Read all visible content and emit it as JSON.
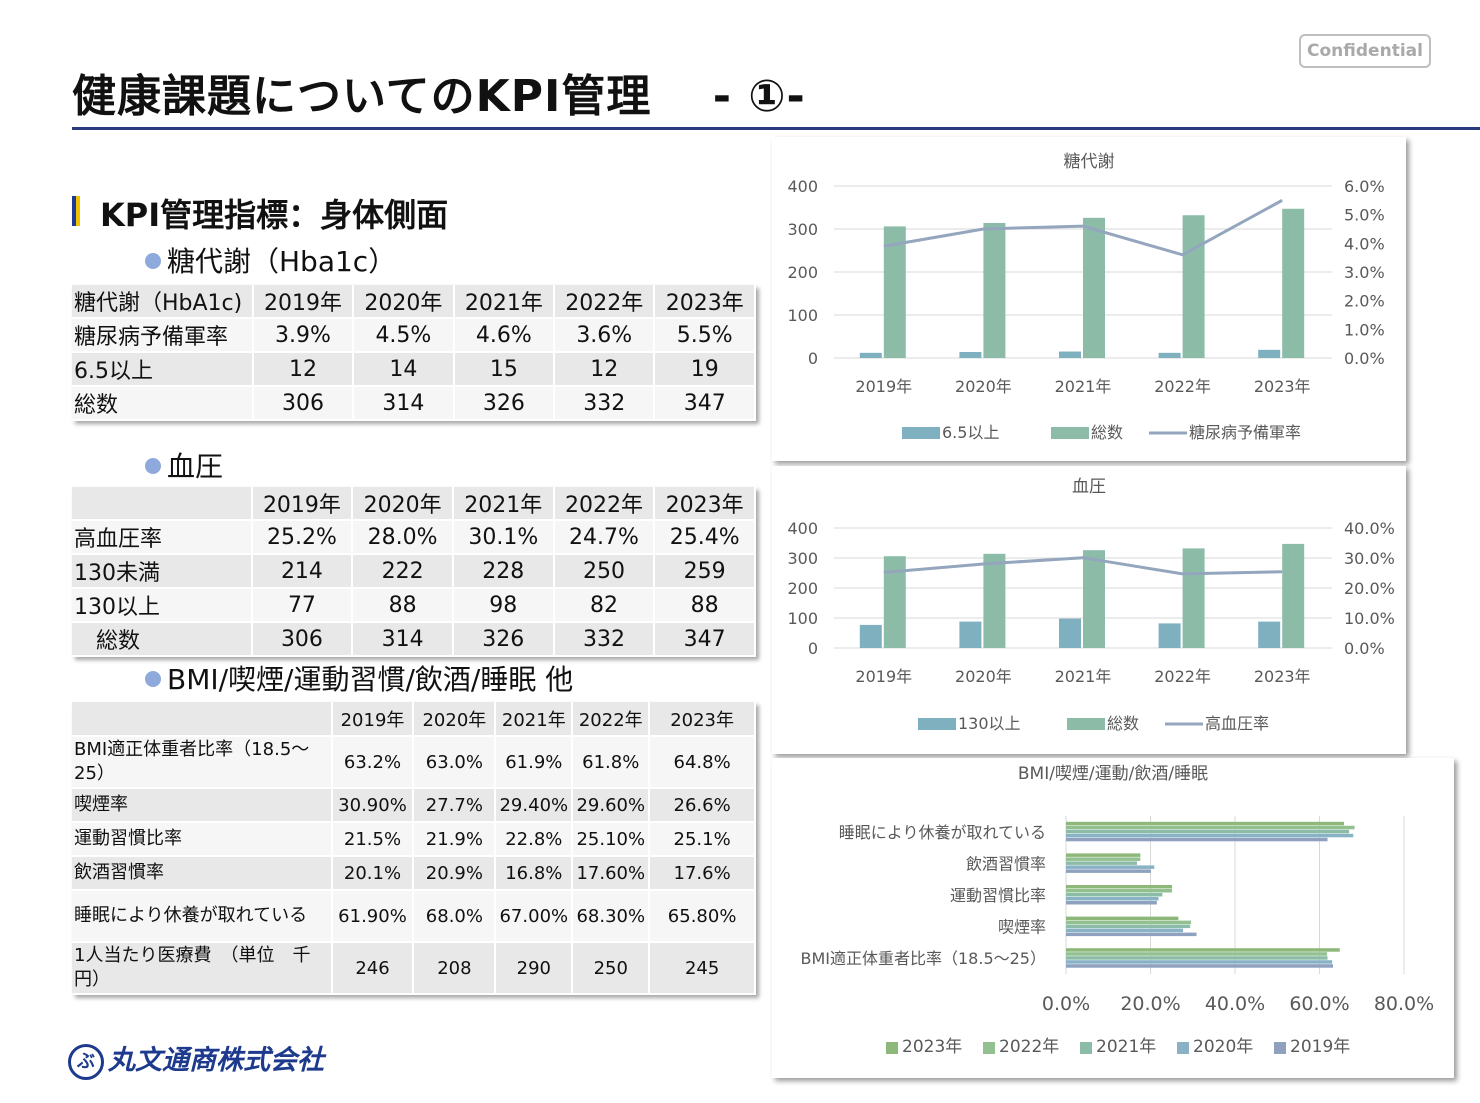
{
  "header": {
    "title": "健康課題についてのKPI管理　 - ①-",
    "confidential": "Confidential"
  },
  "section": {
    "title": "KPI管理指標：身体側面",
    "bullet1": "糖代謝（Hba1c）",
    "bullet2": "血圧",
    "bullet3": "BMI/喫煙/運動習慣/飲酒/睡眠 他"
  },
  "table1": {
    "headers": [
      "糖代謝（HbA1c)",
      "2019年",
      "2020年",
      "2021年",
      "2022年",
      "2023年"
    ],
    "rows": [
      [
        "糖尿病予備軍率",
        "3.9%",
        "4.5%",
        "4.6%",
        "3.6%",
        "5.5%"
      ],
      [
        "6.5以上",
        "12",
        "14",
        "15",
        "12",
        "19"
      ],
      [
        "総数",
        "306",
        "314",
        "326",
        "332",
        "347"
      ]
    ]
  },
  "table2": {
    "headers": [
      "",
      "2019年",
      "2020年",
      "2021年",
      "2022年",
      "2023年"
    ],
    "rows": [
      [
        "高血圧率",
        "25.2%",
        "28.0%",
        "30.1%",
        "24.7%",
        "25.4%"
      ],
      [
        "130未満",
        "214",
        "222",
        "228",
        "250",
        "259"
      ],
      [
        "130以上",
        "77",
        "88",
        "98",
        "82",
        "88"
      ],
      [
        "　総数",
        "306",
        "314",
        "326",
        "332",
        "347"
      ]
    ]
  },
  "table3": {
    "headers": [
      "",
      "2019年",
      "2020年",
      "2021年",
      "2022年",
      "2023年"
    ],
    "rows": [
      [
        "BMI適正体重者比率（18.5～25）",
        "63.2%",
        "63.0%",
        "61.9%",
        "61.8%",
        "64.8%"
      ],
      [
        "喫煙率",
        "30.90%",
        "27.7%",
        "29.40%",
        "29.60%",
        "26.6%"
      ],
      [
        "運動習慣比率",
        "21.5%",
        "21.9%",
        "22.8%",
        "25.10%",
        "25.1%"
      ],
      [
        "飲酒習慣率",
        "20.1%",
        "20.9%",
        "16.8%",
        "17.60%",
        "17.6%"
      ],
      [
        "睡眠により休養が取れている",
        "61.90%",
        "68.0%",
        "67.00%",
        "68.30%",
        "65.80%"
      ],
      [
        "1人当たり医療費　（単位　千円）",
        "246",
        "208",
        "290",
        "250",
        "245"
      ]
    ]
  },
  "chart_data": [
    {
      "type": "bar",
      "title": "糖代謝",
      "categories": [
        "2019年",
        "2020年",
        "2021年",
        "2022年",
        "2023年"
      ],
      "series": [
        {
          "name": "6.5以上",
          "kind": "bar",
          "axis": "left",
          "color": "#7fb0c0",
          "values": [
            12,
            14,
            15,
            12,
            19
          ]
        },
        {
          "name": "総数",
          "kind": "bar",
          "axis": "left",
          "color": "#8cbca8",
          "values": [
            306,
            314,
            326,
            332,
            347
          ]
        },
        {
          "name": "糖尿病予備軍率",
          "kind": "line",
          "axis": "right",
          "color": "#94a6bd",
          "values": [
            3.9,
            4.5,
            4.6,
            3.6,
            5.5
          ]
        }
      ],
      "ylim": [
        0,
        400
      ],
      "yticks": [
        "0",
        "100",
        "200",
        "300",
        "400"
      ],
      "y2lim": [
        0,
        6
      ],
      "y2ticks": [
        "0.0%",
        "1.0%",
        "2.0%",
        "3.0%",
        "4.0%",
        "5.0%",
        "6.0%"
      ],
      "legend": "bottom"
    },
    {
      "type": "bar",
      "title": "血圧",
      "categories": [
        "2019年",
        "2020年",
        "2021年",
        "2022年",
        "2023年"
      ],
      "series": [
        {
          "name": "130以上",
          "kind": "bar",
          "axis": "left",
          "color": "#7fb0c0",
          "values": [
            77,
            88,
            98,
            82,
            88
          ]
        },
        {
          "name": "総数",
          "kind": "bar",
          "axis": "left",
          "color": "#8cbca8",
          "values": [
            306,
            314,
            326,
            332,
            347
          ]
        },
        {
          "name": "高血圧率",
          "kind": "line",
          "axis": "right",
          "color": "#94a6bd",
          "values": [
            25.2,
            28.0,
            30.1,
            24.7,
            25.4
          ]
        }
      ],
      "ylim": [
        0,
        400
      ],
      "yticks": [
        "0",
        "100",
        "200",
        "300",
        "400"
      ],
      "y2lim": [
        0,
        40
      ],
      "y2ticks": [
        "0.0%",
        "10.0%",
        "20.0%",
        "30.0%",
        "40.0%"
      ],
      "legend": "bottom"
    },
    {
      "type": "bar",
      "orientation": "horizontal",
      "title": "BMI/喫煙/運動/飲酒/睡眠",
      "categories": [
        "睡眠により休養が取れている",
        "飲酒習慣率",
        "運動習慣比率",
        "喫煙率",
        "BMI適正体重者比率（18.5～25）"
      ],
      "series": [
        {
          "name": "2023年",
          "color": "#8db87a",
          "values": [
            65.8,
            17.6,
            25.1,
            26.6,
            64.8
          ]
        },
        {
          "name": "2022年",
          "color": "#93c08f",
          "values": [
            68.3,
            17.6,
            25.1,
            29.6,
            61.8
          ]
        },
        {
          "name": "2021年",
          "color": "#8cbca8",
          "values": [
            67.0,
            16.8,
            22.8,
            29.4,
            61.9
          ]
        },
        {
          "name": "2020年",
          "color": "#88b3c4",
          "values": [
            68.0,
            20.9,
            21.9,
            27.7,
            63.0
          ]
        },
        {
          "name": "2019年",
          "color": "#8ea2bf",
          "values": [
            61.9,
            20.1,
            21.5,
            30.9,
            63.2
          ]
        }
      ],
      "xlim": [
        0,
        80
      ],
      "xticks": [
        "0.0%",
        "20.0%",
        "40.0%",
        "60.0%",
        "80.0%"
      ],
      "legend": "bottom"
    }
  ],
  "colors": {
    "accent_navy": "#2b3a7c",
    "section_bar_navy": "#1f3a93",
    "section_bar_yellow": "#f2c200",
    "bullet": "#8ea9db"
  },
  "footer": {
    "company": "丸文通商株式会社",
    "logo_mark": "ぶ"
  }
}
